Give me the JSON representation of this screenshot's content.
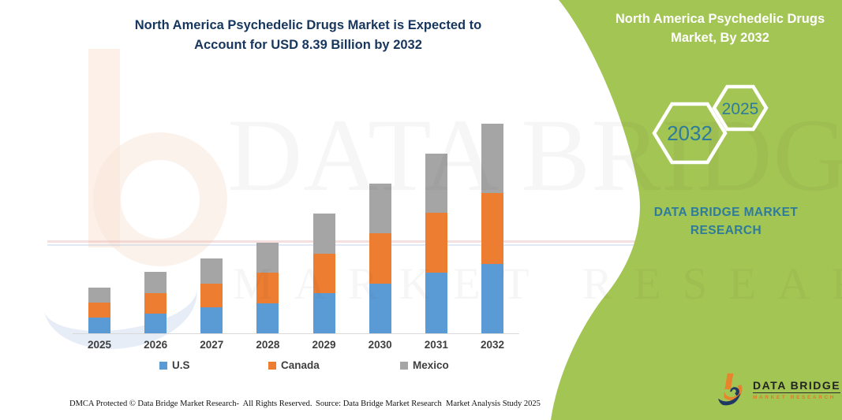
{
  "header": {
    "title_line1": "North America Psychedelic Drugs Market is Expected to",
    "title_line2": "Account for USD 8.39 Billion by 2032"
  },
  "side_panel": {
    "background_color": "#a3c553",
    "title_line1": "North America Psychedelic Drugs",
    "title_line2": "Market, By 2032",
    "hexagons": [
      {
        "label": "2032"
      },
      {
        "label": "2025"
      }
    ],
    "brand_line1": "DATA BRIDGE MARKET",
    "brand_line2": "RESEARCH",
    "accent_text_color": "#2e7b9c"
  },
  "watermark": {
    "line1": "DATA BRIDGE",
    "line2": "MARKET RESEARCH"
  },
  "logo": {
    "name": "DATA BRIDGE",
    "sub": "MARKET RESEARCH"
  },
  "footer": {
    "left": "DMCA Protected © Data Bridge Market Research-  All Rights Reserved.",
    "right": "Source: Data Bridge Market Research  Market Analysis Study 2025"
  },
  "chart_data": {
    "type": "bar",
    "stacked": true,
    "title": "North America Psychedelic Drugs Market is Expected to Account for USD 8.39 Billion by 2032",
    "unit": "USD Billion",
    "xlabel": "",
    "ylabel": "",
    "ylim": [
      0,
      8.5
    ],
    "grid": false,
    "legend_position": "bottom",
    "categories": [
      "2025",
      "2026",
      "2027",
      "2028",
      "2029",
      "2030",
      "2031",
      "2032"
    ],
    "series": [
      {
        "name": "U.S",
        "color": "#5b9bd5",
        "values": [
          0.63,
          0.8,
          1.03,
          1.21,
          1.61,
          1.99,
          2.43,
          2.78
        ]
      },
      {
        "name": "Canada",
        "color": "#ed7d31",
        "values": [
          0.6,
          0.82,
          0.95,
          1.22,
          1.58,
          2.02,
          2.4,
          2.84
        ]
      },
      {
        "name": "Mexico",
        "color": "#a5a5a5",
        "values": [
          0.6,
          0.84,
          1.02,
          1.21,
          1.61,
          1.98,
          2.37,
          2.77
        ]
      }
    ],
    "totals": [
      1.83,
      2.46,
      3.0,
      3.64,
      4.8,
      5.99,
      7.2,
      8.39
    ],
    "highlight_total_2032": 8.39
  }
}
